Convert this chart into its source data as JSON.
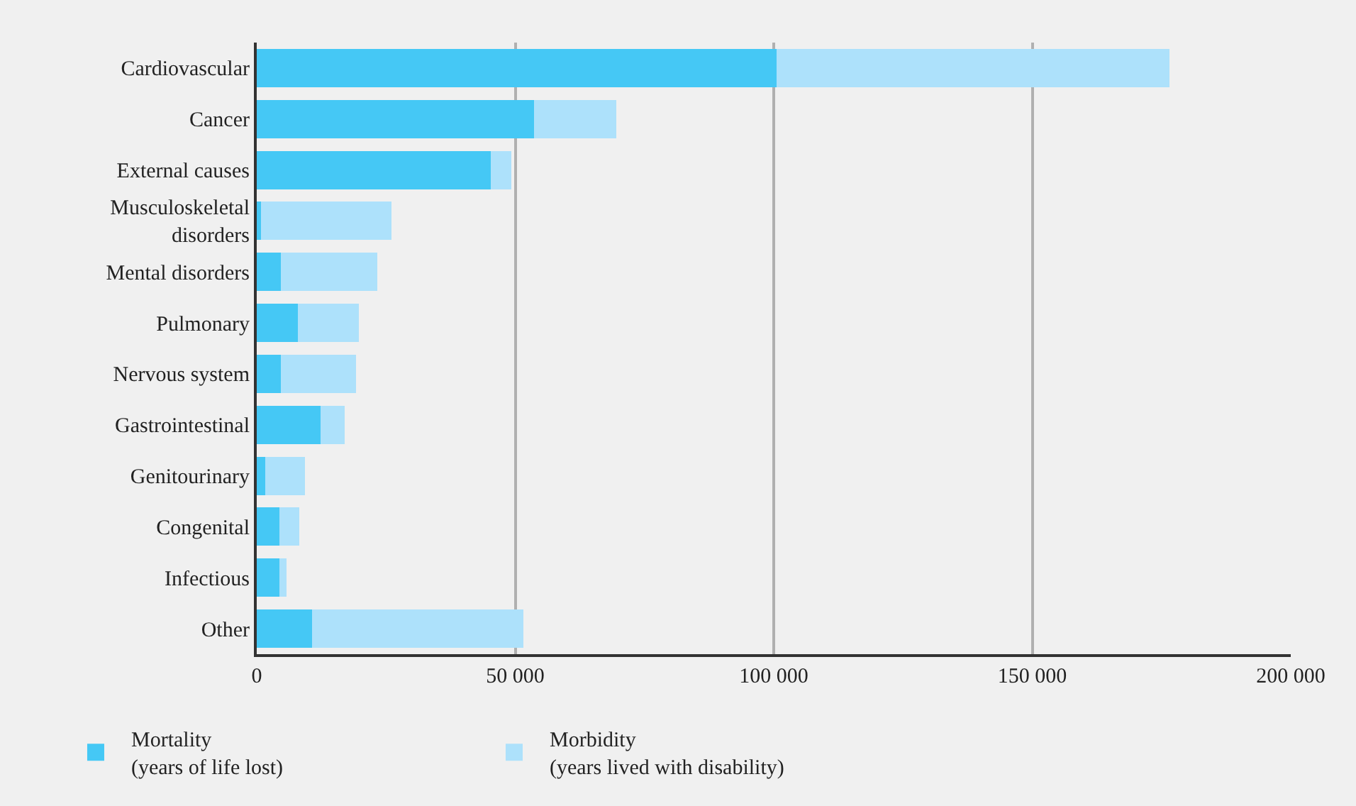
{
  "chart_data": {
    "type": "bar",
    "orientation": "horizontal",
    "stacked": true,
    "categories": [
      "Cardiovascular",
      "Cancer",
      "External causes",
      "Musculoskeletal disorders",
      "Mental disorders",
      "Pulmonary",
      "Nervous system",
      "Gastrointestinal",
      "Genitourinary",
      "Congenital",
      "Infectious",
      "Other"
    ],
    "series": [
      {
        "name": "Mortality\n(years of life lost)",
        "color": "#45c8f5",
        "values": [
          100500,
          53600,
          45300,
          800,
          4700,
          8000,
          4700,
          12400,
          1600,
          4400,
          4400,
          10700
        ]
      },
      {
        "name": "Morbidity\n(years lived with disability)",
        "color": "#ade1fb",
        "values": [
          76100,
          15900,
          3900,
          25300,
          18600,
          11800,
          14500,
          4600,
          7700,
          3800,
          1400,
          40900
        ]
      }
    ],
    "xlim": [
      0,
      200000
    ],
    "xticks": [
      0,
      {
        "value": 50000,
        "label": "50 000"
      },
      {
        "value": 100000,
        "label": "100 000"
      },
      {
        "value": 150000,
        "label": "150 000"
      },
      {
        "value": 200000,
        "label": "200 000"
      }
    ],
    "grid": "x",
    "legend": "bottom left"
  }
}
